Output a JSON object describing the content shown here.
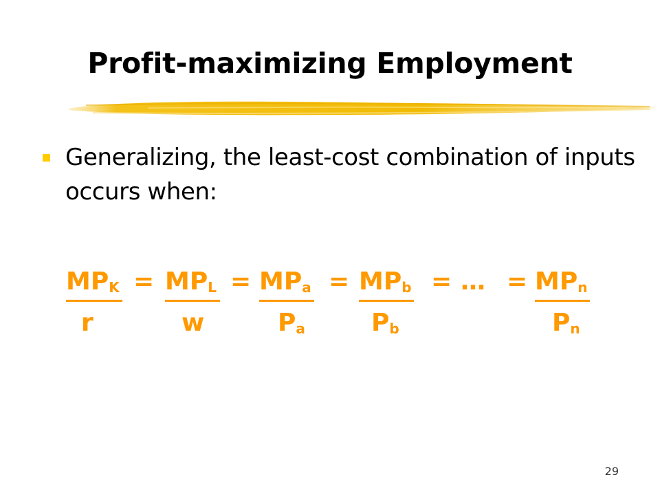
{
  "slide": {
    "title": "Profit-maximizing Employment",
    "bullet": "Generalizing, the least-cost combination of inputs occurs when:",
    "page_number": "29"
  },
  "equation": {
    "terms": [
      {
        "num": "MP",
        "num_sub": "K",
        "den": "r",
        "den_sub": ""
      },
      {
        "num": "MP",
        "num_sub": "L",
        "den": "w",
        "den_sub": ""
      },
      {
        "num": "MP",
        "num_sub": "a",
        "den": "P",
        "den_sub": "a"
      },
      {
        "num": "MP",
        "num_sub": "b",
        "den": "P",
        "den_sub": "b"
      },
      {
        "num": "MP",
        "num_sub": "n",
        "den": "P",
        "den_sub": "n"
      }
    ],
    "equals": "=",
    "ellipsis": "…"
  },
  "colors": {
    "accent": "#FF9900",
    "bullet": "#FFCC00",
    "brush": "#F5C400",
    "title": "#000000"
  }
}
